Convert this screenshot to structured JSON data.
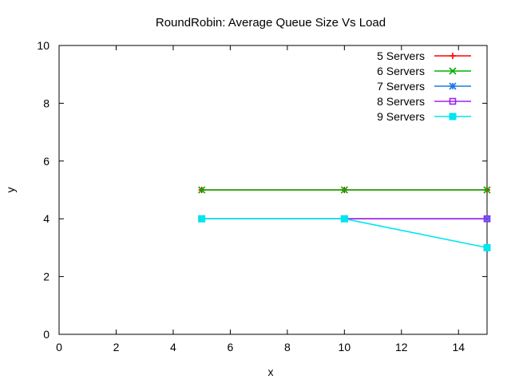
{
  "chart_data": {
    "type": "line",
    "title": "RoundRobin: Average Queue Size Vs Load",
    "xlabel": "x",
    "ylabel": "y",
    "xlim": [
      0,
      15
    ],
    "ylim": [
      0,
      10
    ],
    "xticks": [
      0,
      2,
      4,
      6,
      8,
      10,
      12,
      14
    ],
    "yticks": [
      0,
      2,
      4,
      6,
      8,
      10
    ],
    "grid": false,
    "legend_position": "top-right",
    "x": [
      5,
      10,
      15
    ],
    "series": [
      {
        "name": "5 Servers",
        "values": [
          5,
          5,
          5
        ],
        "color": "#ff0000",
        "marker": "plus"
      },
      {
        "name": "6 Servers",
        "values": [
          5,
          5,
          5
        ],
        "color": "#00b000",
        "marker": "cross"
      },
      {
        "name": "7 Servers",
        "values": [
          4,
          4,
          4
        ],
        "color": "#1e78e6",
        "marker": "star"
      },
      {
        "name": "8 Servers",
        "values": [
          4,
          4,
          4
        ],
        "color": "#a020f0",
        "marker": "open-square"
      },
      {
        "name": "9 Servers",
        "values": [
          4,
          4,
          3
        ],
        "color": "#00e5ee",
        "marker": "filled-square"
      }
    ]
  }
}
